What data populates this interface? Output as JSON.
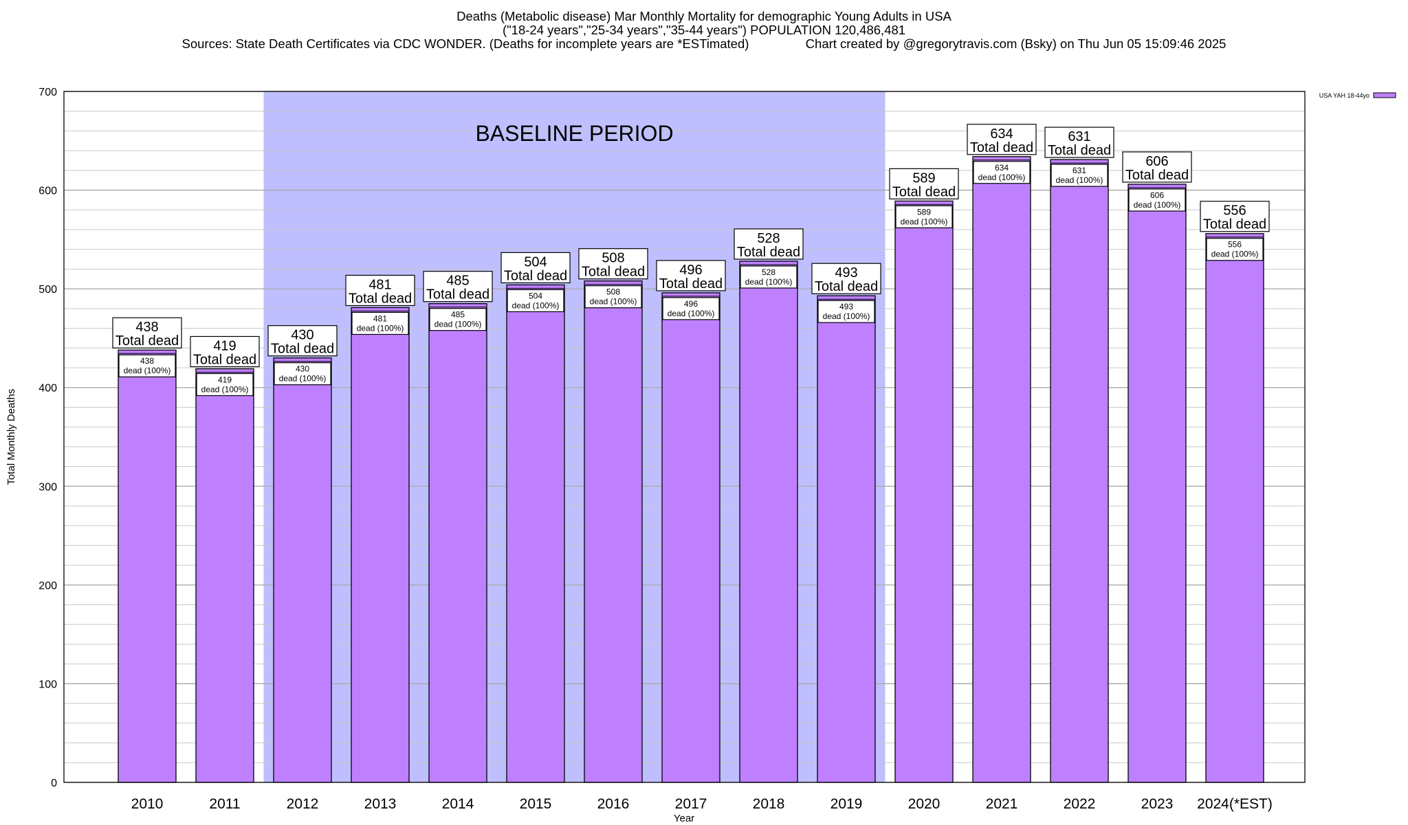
{
  "chart_data": {
    "type": "bar",
    "title": "Deaths (Metabolic disease) Mar Monthly Mortality for demographic Young Adults in USA",
    "subtitle": "(\"18-24 years\",\"25-34 years\",\"35-44 years\") POPULATION 120,486,481",
    "sources": "Sources: State Death Certificates via CDC WONDER. (Deaths for incomplete years are *ESTimated)",
    "credit": "Chart created by @gregorytravis.com (Bsky) on Thu Jun 05 15:09:46 2025",
    "xlabel": "Year",
    "ylabel": "Total Monthly Deaths",
    "ylim": [
      0,
      700
    ],
    "yticks": [
      0,
      100,
      200,
      300,
      400,
      500,
      600,
      700
    ],
    "minor_grid_step": 20,
    "grid": true,
    "legend": {
      "placement": "top-right",
      "entries": [
        "USA YAH 18-44yo"
      ]
    },
    "categories": [
      "2010",
      "2011",
      "2012",
      "2013",
      "2014",
      "2015",
      "2016",
      "2017",
      "2018",
      "2019",
      "2020",
      "2021",
      "2022",
      "2023",
      "2024(*EST)"
    ],
    "series": [
      {
        "name": "USA YAH 18-44yo",
        "values": [
          438,
          419,
          430,
          481,
          485,
          504,
          508,
          496,
          528,
          493,
          589,
          634,
          631,
          606,
          556
        ],
        "color": "#bf80ff"
      }
    ],
    "total_label": "Total dead",
    "inner_label": "dead (100%)",
    "baseline": {
      "label": "BASELINE PERIOD",
      "from": "2012",
      "to": "2019",
      "color": "#bfbfff"
    }
  }
}
